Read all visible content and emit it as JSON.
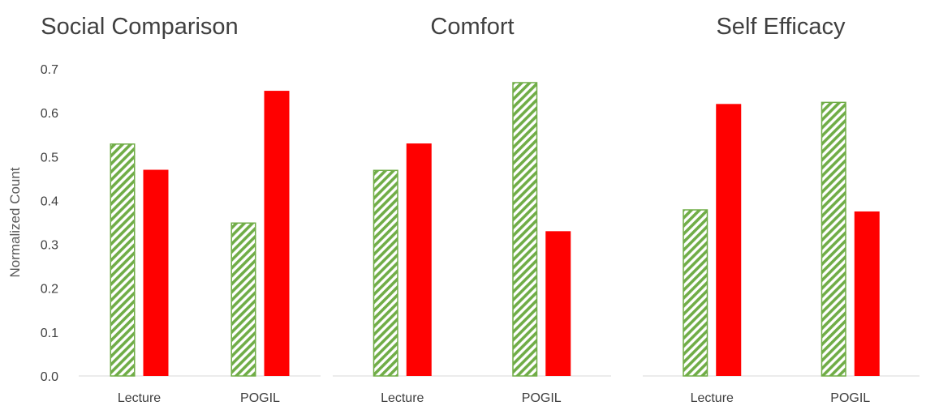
{
  "chart_data": [
    {
      "type": "bar",
      "title": "Social Comparison",
      "ylabel": "Normalized Count",
      "ylim": [
        0,
        0.7
      ],
      "yticks": [
        "0.0",
        "0.1",
        "0.2",
        "0.3",
        "0.4",
        "0.5",
        "0.6",
        "0.7"
      ],
      "categories": [
        "Lecture",
        "POGIL"
      ],
      "series": [
        {
          "values": [
            0.53,
            0.35
          ],
          "color": "#70ad47",
          "pattern": "diagonal-hatch"
        },
        {
          "values": [
            0.47,
            0.65
          ],
          "color": "#ff0000",
          "pattern": "solid"
        }
      ]
    },
    {
      "type": "bar",
      "title": "Comfort",
      "ylim": [
        0,
        0.7
      ],
      "categories": [
        "Lecture",
        "POGIL"
      ],
      "series": [
        {
          "values": [
            0.47,
            0.67
          ],
          "color": "#70ad47",
          "pattern": "diagonal-hatch"
        },
        {
          "values": [
            0.53,
            0.33
          ],
          "color": "#ff0000",
          "pattern": "solid"
        }
      ]
    },
    {
      "type": "bar",
      "title": "Self Efficacy",
      "ylim": [
        0,
        0.7
      ],
      "categories": [
        "Lecture",
        "POGIL"
      ],
      "series": [
        {
          "values": [
            0.38,
            0.625
          ],
          "color": "#70ad47",
          "pattern": "diagonal-hatch"
        },
        {
          "values": [
            0.62,
            0.375
          ],
          "color": "#ff0000",
          "pattern": "solid"
        }
      ]
    }
  ]
}
